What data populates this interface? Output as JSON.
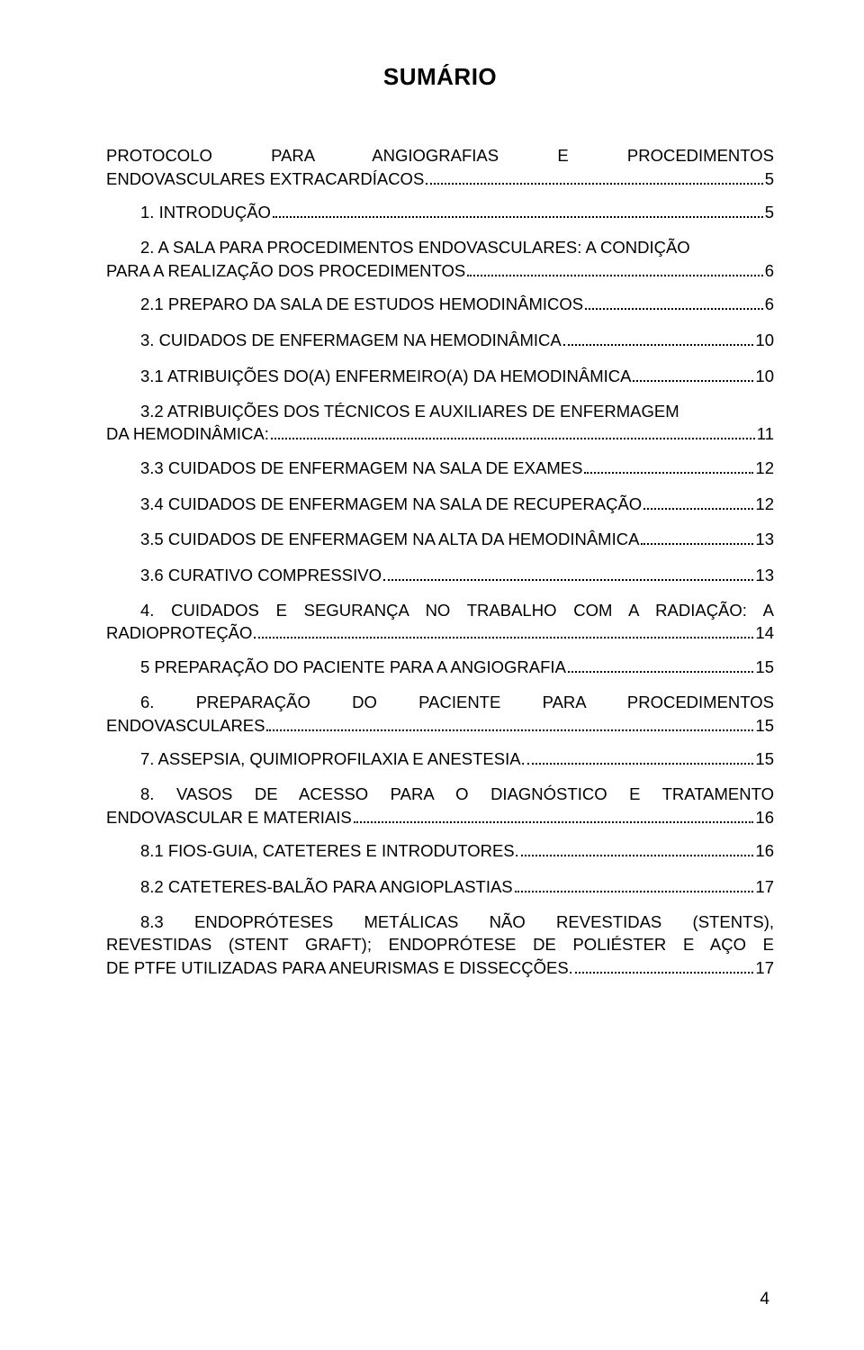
{
  "title": "SUMÁRIO",
  "footer_page_number": "4",
  "entries": [
    {
      "lines": [
        "PROTOCOLO PARA ANGIOGRAFIAS E PROCEDIMENTOS",
        "ENDOVASCULARES EXTRACARDÍACOS"
      ],
      "page": "5",
      "indent": 0,
      "justified": true
    },
    {
      "lines": [
        "1. INTRODUÇÃO"
      ],
      "page": "5",
      "indent": 1,
      "justified": false
    },
    {
      "lines": [
        "2. A SALA PARA PROCEDIMENTOS ENDOVASCULARES: A CONDIÇÃO",
        "PARA A REALIZAÇÃO DOS PROCEDIMENTOS"
      ],
      "page": "6",
      "indent": 1,
      "justified": false
    },
    {
      "lines": [
        "2.1 PREPARO DA SALA DE ESTUDOS HEMODINÂMICOS"
      ],
      "page": "6",
      "indent": 1,
      "justified": false
    },
    {
      "lines": [
        "3. CUIDADOS DE ENFERMAGEM NA HEMODINÂMICA"
      ],
      "page": "10",
      "indent": 1,
      "justified": false
    },
    {
      "lines": [
        "3.1 ATRIBUIÇÕES DO(A) ENFERMEIRO(A) DA HEMODINÂMICA"
      ],
      "page": "10",
      "indent": 1,
      "justified": false
    },
    {
      "lines": [
        "3.2 ATRIBUIÇÕES DOS TÉCNICOS E AUXILIARES DE ENFERMAGEM",
        "DA HEMODINÂMICA:"
      ],
      "page": "11",
      "indent": 1,
      "justified": false
    },
    {
      "lines": [
        "3.3 CUIDADOS DE ENFERMAGEM NA SALA DE EXAMES"
      ],
      "page": "12",
      "indent": 1,
      "justified": false
    },
    {
      "lines": [
        "3.4 CUIDADOS DE ENFERMAGEM NA SALA DE RECUPERAÇÃO"
      ],
      "page": "12",
      "indent": 1,
      "justified": false
    },
    {
      "lines": [
        "3.5 CUIDADOS DE ENFERMAGEM NA ALTA DA HEMODINÂMICA"
      ],
      "page": "13",
      "indent": 1,
      "justified": false
    },
    {
      "lines": [
        "3.6 CURATIVO COMPRESSIVO"
      ],
      "page": "13",
      "indent": 1,
      "justified": false
    },
    {
      "lines": [
        "4. CUIDADOS E SEGURANÇA NO TRABALHO COM A RADIAÇÃO: A",
        "RADIOPROTEÇÃO"
      ],
      "page": "14",
      "indent": 1,
      "justified": true
    },
    {
      "lines": [
        "5 PREPARAÇÃO DO PACIENTE PARA A ANGIOGRAFIA"
      ],
      "page": "15",
      "indent": 1,
      "justified": false
    },
    {
      "lines": [
        "6. PREPARAÇÃO DO PACIENTE PARA PROCEDIMENTOS",
        "ENDOVASCULARES"
      ],
      "page": "15",
      "indent": 1,
      "justified": true
    },
    {
      "lines": [
        "7. ASSEPSIA, QUIMIOPROFILAXIA E ANESTESIA."
      ],
      "page": "15",
      "indent": 1,
      "justified": false
    },
    {
      "lines": [
        "8. VASOS DE ACESSO PARA O DIAGNÓSTICO E TRATAMENTO",
        "ENDOVASCULAR E MATERIAIS"
      ],
      "page": "16",
      "indent": 1,
      "justified": true
    },
    {
      "lines": [
        "8.1 FIOS-GUIA, CATETERES E INTRODUTORES."
      ],
      "page": "16",
      "indent": 1,
      "justified": false
    },
    {
      "lines": [
        "8.2 CATETERES-BALÃO PARA ANGIOPLASTIAS"
      ],
      "page": "17",
      "indent": 1,
      "justified": false
    },
    {
      "lines": [
        "8.3 ENDOPRÓTESES METÁLICAS NÃO REVESTIDAS (STENTS),",
        "REVESTIDAS (STENT GRAFT); ENDOPRÓTESE DE POLIÉSTER E AÇO E",
        "DE PTFE UTILIZADAS PARA ANEURISMAS E DISSECÇÕES."
      ],
      "page": "17",
      "indent": 1,
      "justified": true
    }
  ]
}
